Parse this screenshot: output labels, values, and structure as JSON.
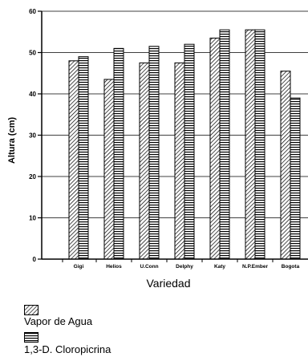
{
  "chart_data": {
    "type": "bar",
    "categories": [
      "Gigi",
      "Helios",
      "U.Conn",
      "Delphy",
      "Katy",
      "N.P.Ember",
      "Bogota"
    ],
    "series": [
      {
        "name": "Vapor de Agua",
        "values": [
          48,
          43.5,
          47.5,
          47.5,
          53.5,
          55.5,
          45.5
        ],
        "pattern": "diagonal"
      },
      {
        "name": "1,3-D. Cloropicrina",
        "values": [
          49,
          51,
          51.5,
          52,
          55.5,
          55.5,
          39
        ],
        "pattern": "horizontal"
      }
    ],
    "xlabel": "Variedad",
    "ylabel": "Altura (cm)",
    "ylim": [
      0,
      60
    ],
    "yticks": [
      "0",
      "10",
      "20",
      "30",
      "40",
      "50",
      "60"
    ],
    "grid": true,
    "legend": "bottom-left"
  }
}
